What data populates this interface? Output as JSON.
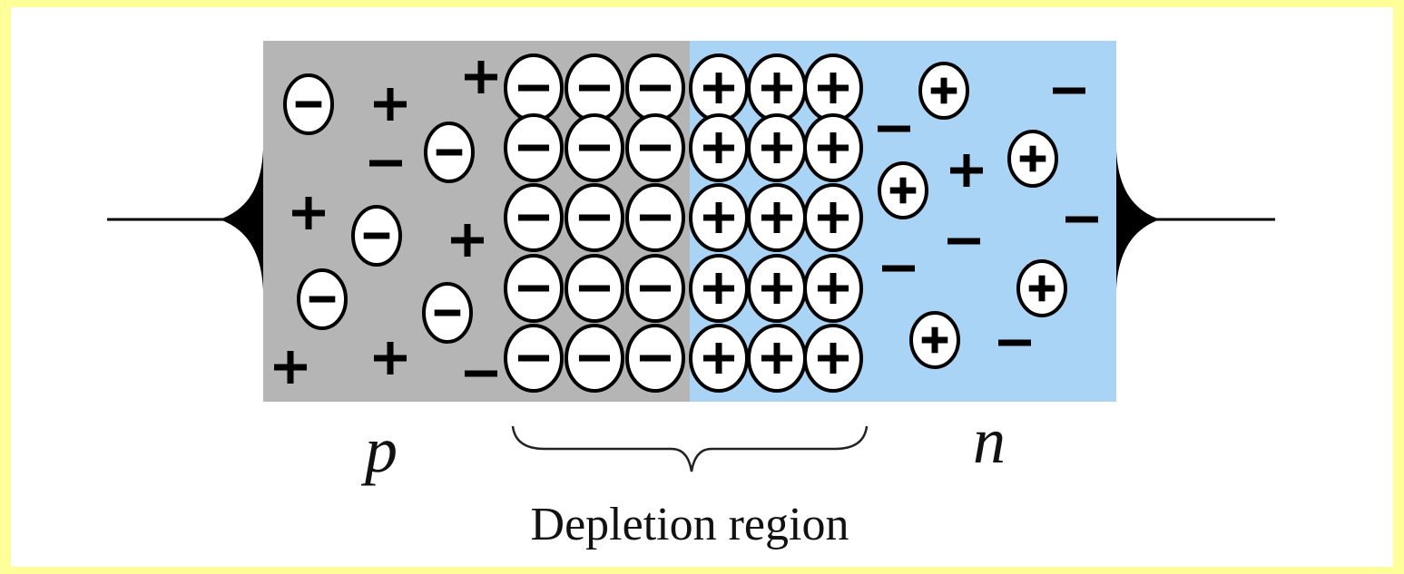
{
  "labels": {
    "p_side": "p",
    "n_side": "n",
    "depletion": "Depletion region"
  }
}
